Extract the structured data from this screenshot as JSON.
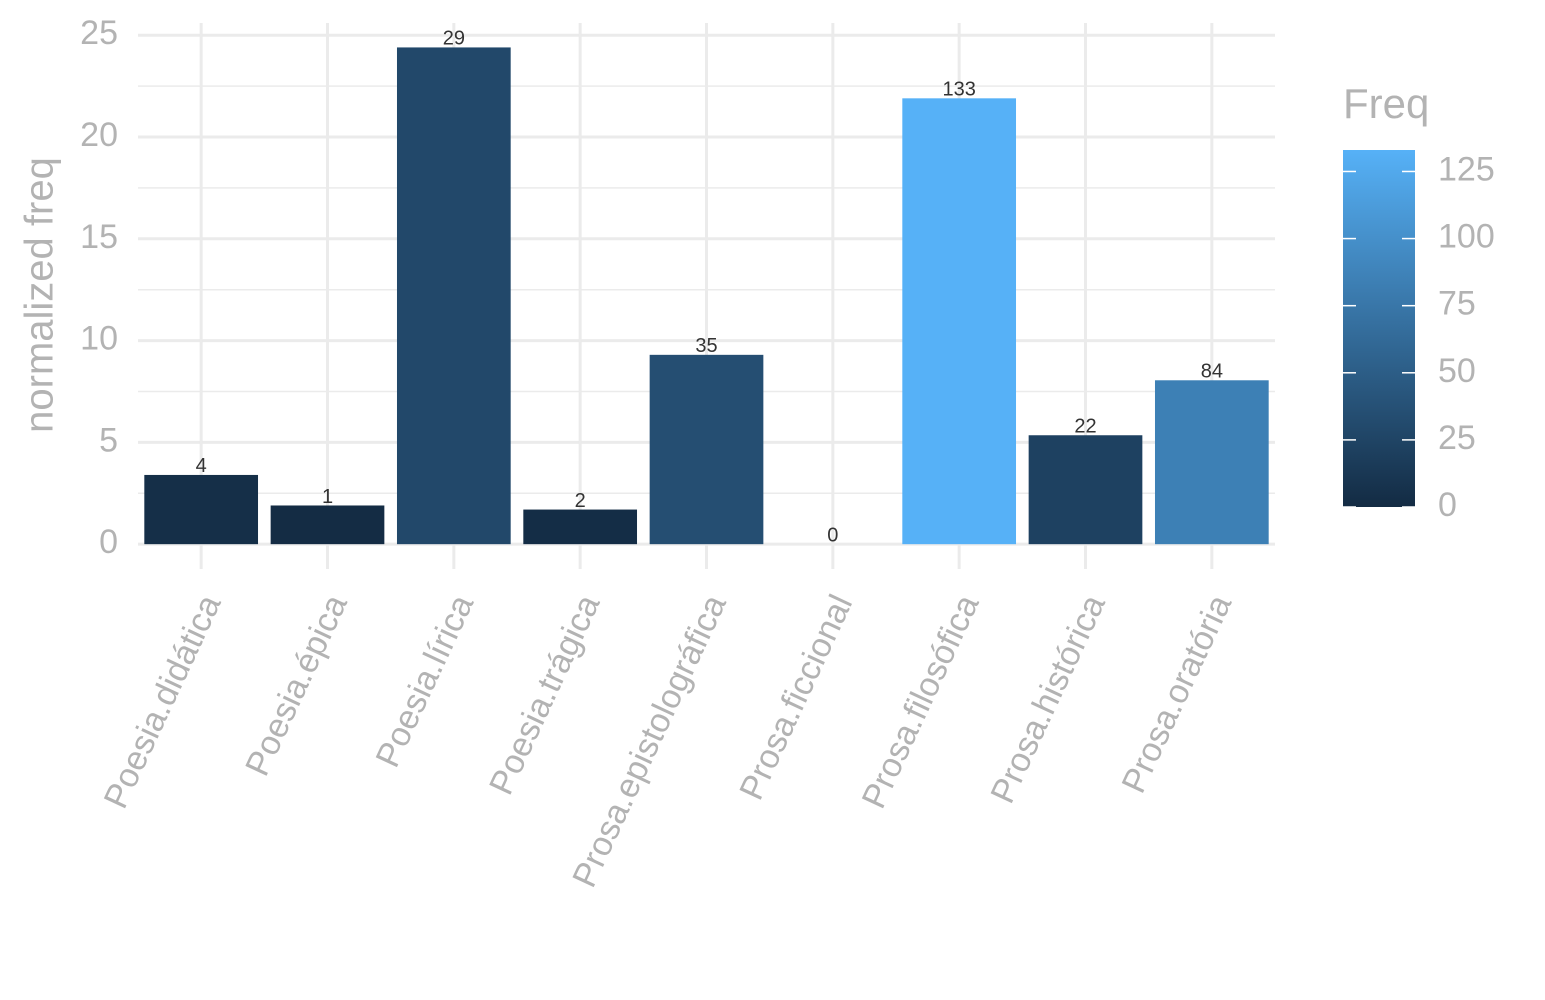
{
  "chart_data": {
    "type": "bar",
    "ylabel": "normalized freq",
    "categories": [
      "Poesia.didática",
      "Poesia.épica",
      "Poesia.lírica",
      "Poesia.trágica",
      "Prosa.epistolográfica",
      "Prosa.ficcional",
      "Prosa.filosófica",
      "Prosa.histórica",
      "Prosa.oratória"
    ],
    "values": [
      3.4,
      1.9,
      24.4,
      1.7,
      9.3,
      0,
      21.9,
      5.35,
      8.05
    ],
    "freq": [
      4,
      1,
      29,
      2,
      35,
      0,
      133,
      22,
      84
    ],
    "ylim": [
      -1.22,
      25.6
    ],
    "yticks": [
      0,
      5,
      10,
      15,
      20,
      25
    ],
    "y_minor_ticks": [
      2.5,
      7.5,
      12.5,
      17.5,
      22.5
    ],
    "grid": true,
    "colorbar": {
      "title": "Freq",
      "lim": [
        0,
        133
      ],
      "ticks": [
        0,
        25,
        50,
        75,
        100,
        125
      ],
      "low": "#132b43",
      "high": "#56b1f7"
    }
  }
}
